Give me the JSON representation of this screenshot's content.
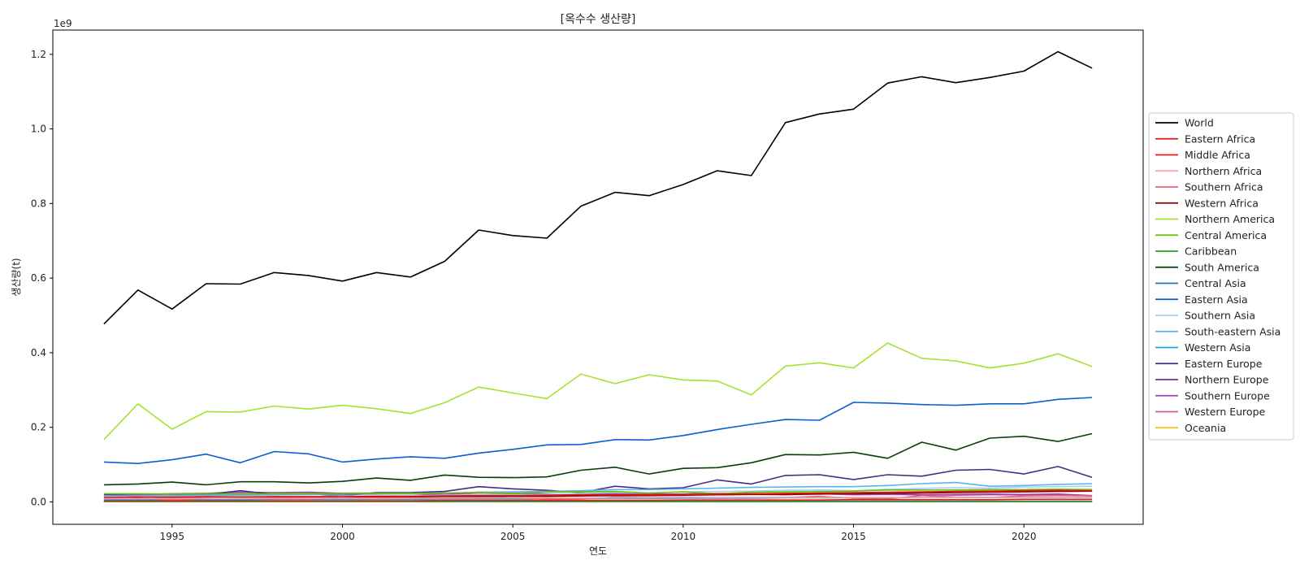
{
  "chart_data": {
    "type": "line",
    "title": "[옥수수 생산량]",
    "xlabel": "연도",
    "ylabel": "생산량(t)",
    "y_offset_label": "1e9",
    "xlim": [
      1991.5,
      2023.5
    ],
    "ylim": [
      -0.06,
      1.265
    ],
    "x_ticks": [
      1995,
      2000,
      2005,
      2010,
      2015,
      2020
    ],
    "y_ticks": [
      0.0,
      0.2,
      0.4,
      0.6,
      0.8,
      1.0,
      1.2
    ],
    "y_tick_labels": [
      "0.0",
      "0.2",
      "0.4",
      "0.6",
      "0.8",
      "1.0",
      "1.2"
    ],
    "grid": false,
    "legend_position": "right",
    "x": [
      1993,
      1994,
      1995,
      1996,
      1997,
      1998,
      1999,
      2000,
      2001,
      2002,
      2003,
      2004,
      2005,
      2006,
      2007,
      2008,
      2009,
      2010,
      2011,
      2012,
      2013,
      2014,
      2015,
      2016,
      2017,
      2018,
      2019,
      2020,
      2021,
      2022
    ],
    "series": [
      {
        "name": "World",
        "color": "#000000",
        "values": [
          0.477,
          0.568,
          0.517,
          0.585,
          0.584,
          0.615,
          0.607,
          0.592,
          0.615,
          0.603,
          0.645,
          0.729,
          0.714,
          0.707,
          0.793,
          0.83,
          0.821,
          0.851,
          0.888,
          0.875,
          1.017,
          1.04,
          1.053,
          1.123,
          1.14,
          1.124,
          1.138,
          1.155,
          1.207,
          1.163
        ]
      },
      {
        "name": "Eastern Africa",
        "color": "#d7191c",
        "values": [
          0.012,
          0.013,
          0.013,
          0.014,
          0.013,
          0.014,
          0.014,
          0.014,
          0.015,
          0.015,
          0.016,
          0.017,
          0.017,
          0.018,
          0.019,
          0.019,
          0.019,
          0.02,
          0.021,
          0.022,
          0.023,
          0.024,
          0.025,
          0.026,
          0.027,
          0.028,
          0.029,
          0.03,
          0.031,
          0.03
        ]
      },
      {
        "name": "Middle Africa",
        "color": "#e41a1c",
        "values": [
          0.003,
          0.003,
          0.003,
          0.003,
          0.003,
          0.003,
          0.003,
          0.003,
          0.003,
          0.003,
          0.004,
          0.004,
          0.004,
          0.004,
          0.004,
          0.004,
          0.004,
          0.005,
          0.005,
          0.005,
          0.005,
          0.005,
          0.006,
          0.006,
          0.006,
          0.006,
          0.006,
          0.007,
          0.007,
          0.007
        ]
      },
      {
        "name": "Northern Africa",
        "color": "#f4a3a8",
        "values": [
          0.009,
          0.009,
          0.009,
          0.01,
          0.01,
          0.01,
          0.01,
          0.01,
          0.01,
          0.01,
          0.011,
          0.011,
          0.011,
          0.011,
          0.011,
          0.011,
          0.011,
          0.012,
          0.012,
          0.012,
          0.012,
          0.012,
          0.012,
          0.012,
          0.012,
          0.012,
          0.012,
          0.012,
          0.012,
          0.012
        ]
      },
      {
        "name": "Southern Africa",
        "color": "#e8606b",
        "values": [
          0.01,
          0.014,
          0.005,
          0.01,
          0.011,
          0.008,
          0.008,
          0.011,
          0.008,
          0.01,
          0.01,
          0.01,
          0.012,
          0.007,
          0.008,
          0.013,
          0.012,
          0.013,
          0.011,
          0.012,
          0.012,
          0.015,
          0.01,
          0.008,
          0.017,
          0.013,
          0.012,
          0.016,
          0.017,
          0.016
        ]
      },
      {
        "name": "Western Africa",
        "color": "#8b0000",
        "values": [
          0.011,
          0.011,
          0.012,
          0.012,
          0.012,
          0.012,
          0.013,
          0.013,
          0.013,
          0.013,
          0.014,
          0.014,
          0.015,
          0.015,
          0.016,
          0.017,
          0.017,
          0.018,
          0.019,
          0.02,
          0.02,
          0.021,
          0.022,
          0.023,
          0.024,
          0.025,
          0.026,
          0.027,
          0.028,
          0.029
        ]
      },
      {
        "name": "Northern America",
        "color": "#a6e22e",
        "values": [
          0.167,
          0.263,
          0.195,
          0.242,
          0.241,
          0.257,
          0.249,
          0.259,
          0.25,
          0.237,
          0.266,
          0.308,
          0.292,
          0.277,
          0.343,
          0.317,
          0.341,
          0.327,
          0.324,
          0.287,
          0.364,
          0.373,
          0.359,
          0.426,
          0.385,
          0.378,
          0.359,
          0.372,
          0.397,
          0.363
        ]
      },
      {
        "name": "Central America",
        "color": "#66c200",
        "values": [
          0.022,
          0.022,
          0.021,
          0.022,
          0.021,
          0.022,
          0.022,
          0.022,
          0.023,
          0.023,
          0.024,
          0.025,
          0.023,
          0.026,
          0.027,
          0.028,
          0.024,
          0.027,
          0.022,
          0.026,
          0.027,
          0.028,
          0.029,
          0.032,
          0.032,
          0.032,
          0.033,
          0.033,
          0.034,
          0.033
        ]
      },
      {
        "name": "Caribbean",
        "color": "#2ca02c",
        "values": [
          0.001,
          0.001,
          0.001,
          0.001,
          0.001,
          0.001,
          0.001,
          0.001,
          0.001,
          0.001,
          0.001,
          0.001,
          0.001,
          0.001,
          0.001,
          0.001,
          0.001,
          0.001,
          0.001,
          0.001,
          0.001,
          0.001,
          0.001,
          0.001,
          0.001,
          0.001,
          0.001,
          0.001,
          0.001,
          0.001
        ]
      },
      {
        "name": "South America",
        "color": "#0b3d0b",
        "values": [
          0.046,
          0.048,
          0.053,
          0.046,
          0.054,
          0.054,
          0.051,
          0.055,
          0.064,
          0.058,
          0.072,
          0.066,
          0.065,
          0.067,
          0.085,
          0.093,
          0.075,
          0.09,
          0.092,
          0.105,
          0.127,
          0.126,
          0.133,
          0.117,
          0.16,
          0.139,
          0.171,
          0.176,
          0.162,
          0.183
        ]
      },
      {
        "name": "Central Asia",
        "color": "#1f77b4",
        "values": [
          0.002,
          0.002,
          0.002,
          0.002,
          0.002,
          0.002,
          0.002,
          0.002,
          0.002,
          0.002,
          0.002,
          0.002,
          0.002,
          0.002,
          0.002,
          0.002,
          0.002,
          0.002,
          0.002,
          0.002,
          0.002,
          0.002,
          0.002,
          0.002,
          0.002,
          0.002,
          0.002,
          0.002,
          0.002,
          0.002
        ]
      },
      {
        "name": "Eastern Asia",
        "color": "#0a5fd0",
        "values": [
          0.107,
          0.103,
          0.113,
          0.128,
          0.105,
          0.135,
          0.129,
          0.107,
          0.115,
          0.121,
          0.117,
          0.131,
          0.141,
          0.153,
          0.154,
          0.167,
          0.166,
          0.178,
          0.194,
          0.208,
          0.221,
          0.219,
          0.267,
          0.265,
          0.261,
          0.259,
          0.263,
          0.263,
          0.275,
          0.28
        ]
      },
      {
        "name": "Southern Asia",
        "color": "#a6cef0",
        "values": [
          0.013,
          0.014,
          0.014,
          0.014,
          0.015,
          0.015,
          0.015,
          0.016,
          0.016,
          0.016,
          0.018,
          0.019,
          0.019,
          0.02,
          0.023,
          0.025,
          0.024,
          0.027,
          0.028,
          0.029,
          0.031,
          0.032,
          0.03,
          0.034,
          0.036,
          0.038,
          0.037,
          0.04,
          0.041,
          0.042
        ]
      },
      {
        "name": "South-eastern Asia",
        "color": "#5ab4ee",
        "values": [
          0.016,
          0.016,
          0.017,
          0.018,
          0.018,
          0.019,
          0.02,
          0.021,
          0.022,
          0.022,
          0.024,
          0.026,
          0.027,
          0.028,
          0.03,
          0.033,
          0.033,
          0.035,
          0.037,
          0.039,
          0.04,
          0.041,
          0.041,
          0.044,
          0.049,
          0.052,
          0.042,
          0.044,
          0.047,
          0.049
        ]
      },
      {
        "name": "Western Asia",
        "color": "#1aa7e0",
        "values": [
          0.006,
          0.006,
          0.006,
          0.006,
          0.006,
          0.007,
          0.007,
          0.007,
          0.007,
          0.007,
          0.008,
          0.008,
          0.008,
          0.008,
          0.009,
          0.009,
          0.009,
          0.01,
          0.01,
          0.01,
          0.011,
          0.011,
          0.011,
          0.011,
          0.012,
          0.012,
          0.012,
          0.012,
          0.012,
          0.012
        ]
      },
      {
        "name": "Eastern Europe",
        "color": "#4b2a85",
        "values": [
          0.02,
          0.015,
          0.017,
          0.02,
          0.03,
          0.02,
          0.022,
          0.017,
          0.025,
          0.025,
          0.028,
          0.041,
          0.035,
          0.031,
          0.025,
          0.042,
          0.035,
          0.038,
          0.059,
          0.048,
          0.071,
          0.073,
          0.06,
          0.073,
          0.069,
          0.085,
          0.087,
          0.075,
          0.095,
          0.066
        ]
      },
      {
        "name": "Northern Europe",
        "color": "#7030a0",
        "values": [
          0.001,
          0.001,
          0.001,
          0.001,
          0.001,
          0.001,
          0.001,
          0.001,
          0.001,
          0.001,
          0.001,
          0.001,
          0.001,
          0.001,
          0.001,
          0.001,
          0.001,
          0.001,
          0.001,
          0.001,
          0.001,
          0.001,
          0.001,
          0.001,
          0.001,
          0.001,
          0.001,
          0.001,
          0.001,
          0.001
        ]
      },
      {
        "name": "Southern Europe",
        "color": "#9e3fb8",
        "values": [
          0.021,
          0.02,
          0.022,
          0.023,
          0.026,
          0.025,
          0.026,
          0.023,
          0.024,
          0.024,
          0.02,
          0.026,
          0.024,
          0.021,
          0.019,
          0.023,
          0.021,
          0.021,
          0.022,
          0.022,
          0.021,
          0.024,
          0.02,
          0.021,
          0.019,
          0.02,
          0.021,
          0.02,
          0.021,
          0.017
        ]
      },
      {
        "name": "Western Europe",
        "color": "#d0579a",
        "values": [
          0.018,
          0.019,
          0.02,
          0.021,
          0.022,
          0.021,
          0.022,
          0.02,
          0.021,
          0.022,
          0.018,
          0.024,
          0.022,
          0.019,
          0.021,
          0.022,
          0.02,
          0.021,
          0.023,
          0.021,
          0.019,
          0.022,
          0.019,
          0.02,
          0.019,
          0.018,
          0.019,
          0.019,
          0.02,
          0.016
        ]
      },
      {
        "name": "Oceania",
        "color": "#f0c419",
        "values": [
          0.0005,
          0.0005,
          0.0005,
          0.0005,
          0.0005,
          0.0005,
          0.0005,
          0.0005,
          0.0005,
          0.0005,
          0.0005,
          0.0005,
          0.0005,
          0.0005,
          0.0005,
          0.0005,
          0.0005,
          0.0005,
          0.0005,
          0.0005,
          0.0005,
          0.0005,
          0.0005,
          0.0005,
          0.0005,
          0.0005,
          0.0005,
          0.0005,
          0.0005,
          0.0005
        ]
      }
    ]
  }
}
